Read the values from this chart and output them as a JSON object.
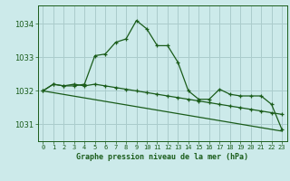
{
  "title": "Graphe pression niveau de la mer (hPa)",
  "background_color": "#cceaea",
  "grid_color": "#aacccc",
  "line_color": "#1a5c1a",
  "yticks": [
    1031,
    1032,
    1033,
    1034
  ],
  "ylim": [
    1030.5,
    1034.55
  ],
  "xlim": [
    -0.5,
    23.5
  ],
  "series1": [
    1032.0,
    1032.2,
    1032.15,
    1032.15,
    1032.2,
    1033.05,
    1033.1,
    1033.45,
    1033.55,
    1034.1,
    1033.85,
    1033.35,
    1033.35,
    1032.85,
    1032.0,
    1031.75,
    1031.75,
    1032.05,
    1031.9,
    1031.85,
    1031.85,
    1031.85,
    1031.6,
    1030.85
  ],
  "series2": [
    1032.0,
    1032.2,
    1032.15,
    1032.2,
    1032.15,
    1032.2,
    1032.15,
    1032.1,
    1032.05,
    1032.0,
    1031.95,
    1031.9,
    1031.85,
    1031.8,
    1031.75,
    1031.7,
    1031.65,
    1031.6,
    1031.55,
    1031.5,
    1031.45,
    1031.4,
    1031.35,
    1031.3
  ],
  "series3_x": [
    0,
    23
  ],
  "series3_y": [
    1032.0,
    1030.8
  ],
  "x_labels": [
    "0",
    "1",
    "2",
    "3",
    "4",
    "5",
    "6",
    "7",
    "8",
    "9",
    "10",
    "11",
    "12",
    "13",
    "14",
    "15",
    "16",
    "17",
    "18",
    "19",
    "20",
    "21",
    "22",
    "23"
  ]
}
